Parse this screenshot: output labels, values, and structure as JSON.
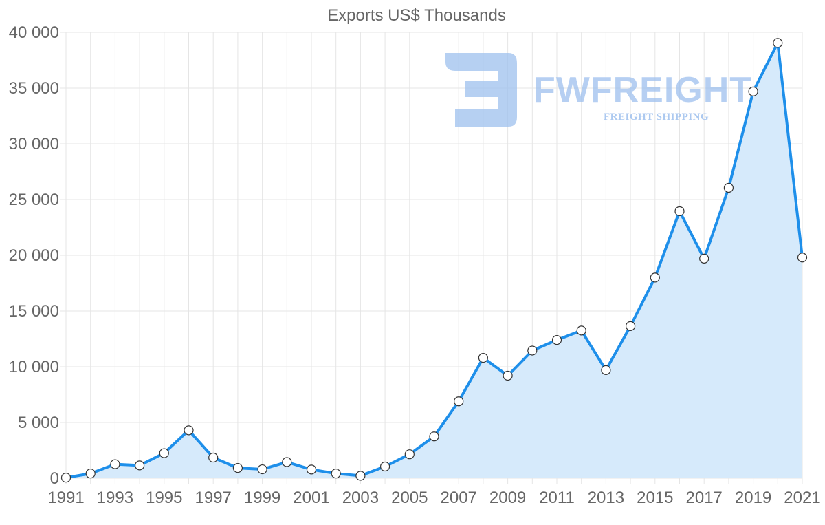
{
  "chart_data": {
    "type": "area",
    "title": "Exports US$ Thousands",
    "xlabel": "",
    "ylabel": "",
    "x": [
      1991,
      1992,
      1993,
      1994,
      1995,
      1996,
      1997,
      1998,
      1999,
      2000,
      2001,
      2002,
      2003,
      2004,
      2005,
      2006,
      2007,
      2008,
      2009,
      2010,
      2011,
      2012,
      2013,
      2014,
      2015,
      2016,
      2017,
      2018,
      2019,
      2020,
      2021
    ],
    "values": [
      50,
      420,
      1260,
      1150,
      2250,
      4300,
      1850,
      920,
      800,
      1450,
      780,
      420,
      220,
      1050,
      2150,
      3750,
      6900,
      10800,
      9200,
      11450,
      12400,
      13250,
      9700,
      13650,
      18000,
      23950,
      19700,
      26050,
      34700,
      39050,
      19800
    ],
    "ylim": [
      0,
      40000
    ],
    "yticks": [
      0,
      5000,
      10000,
      15000,
      20000,
      25000,
      30000,
      35000,
      40000
    ],
    "ytick_labels": [
      "0",
      "5 000",
      "10 000",
      "15 000",
      "20 000",
      "25 000",
      "30 000",
      "35 000",
      "40 000"
    ],
    "xtick_labels": [
      "1991",
      "1993",
      "1995",
      "1997",
      "1999",
      "2001",
      "2003",
      "2005",
      "2007",
      "2009",
      "2011",
      "2013",
      "2015",
      "2017",
      "2019",
      "2021"
    ],
    "grid": true,
    "colors": {
      "line": "#1e8fea",
      "fill": "#d6eafb",
      "marker_fill": "#ffffff",
      "marker_stroke": "#333333"
    }
  },
  "watermark": {
    "name": "FWFREIGHT",
    "tagline": "FREIGHT SHIPPING",
    "color": "#9ec0ee"
  }
}
